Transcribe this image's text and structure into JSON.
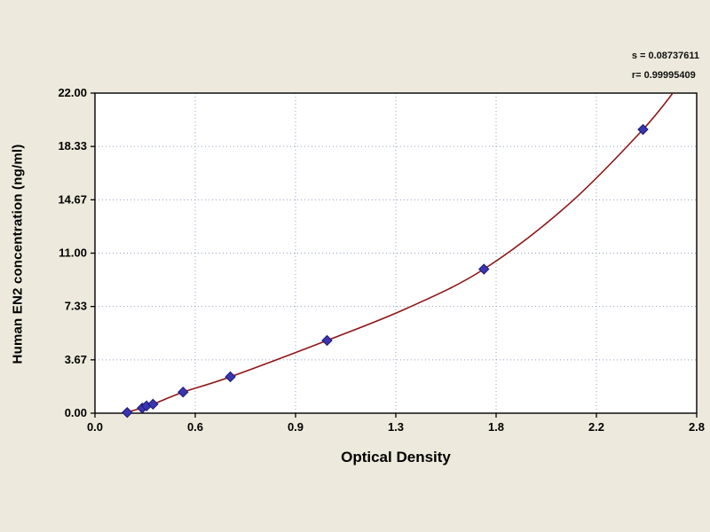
{
  "stats": {
    "line1": "s = 0.08737611",
    "line2": "r= 0.99995409"
  },
  "chart_data": {
    "type": "scatter",
    "title": "",
    "xlabel": "Optical Density",
    "ylabel": "Human EN2 concentration (ng/ml)",
    "xlim": [
      0,
      2.8
    ],
    "ylim": [
      0,
      22
    ],
    "x_tick_labels": [
      "0.0",
      "0.6",
      "0.9",
      "1.3",
      "1.8",
      "2.2",
      "2.8"
    ],
    "y_tick_labels": [
      "0.00",
      "3.67",
      "7.33",
      "11.00",
      "14.67",
      "18.33",
      "22.00"
    ],
    "grid": "dotted",
    "legend_position": "none",
    "points": [
      [
        0.15,
        0.05
      ],
      [
        0.22,
        0.35
      ],
      [
        0.24,
        0.5
      ],
      [
        0.27,
        0.62
      ],
      [
        0.41,
        1.45
      ],
      [
        0.63,
        2.5
      ],
      [
        1.08,
        5.0
      ],
      [
        1.81,
        9.9
      ],
      [
        2.55,
        19.5
      ]
    ],
    "curve_anchors": [
      [
        0.1,
        -0.25
      ],
      [
        0.15,
        0.05
      ],
      [
        0.27,
        0.62
      ],
      [
        0.41,
        1.45
      ],
      [
        0.63,
        2.5
      ],
      [
        1.08,
        5.0
      ],
      [
        1.45,
        7.2
      ],
      [
        1.81,
        9.9
      ],
      [
        2.2,
        14.3
      ],
      [
        2.55,
        19.5
      ],
      [
        2.72,
        22.6
      ]
    ],
    "colors": {
      "background": "#ede9dc",
      "plot_background": "#ffffff",
      "grid": "#93a0c4",
      "axis": "#000000",
      "curve": "#8e1616",
      "marker_fill": "#3a35b0",
      "marker_stroke": "#1a1670",
      "tick_text": "#000000"
    }
  }
}
